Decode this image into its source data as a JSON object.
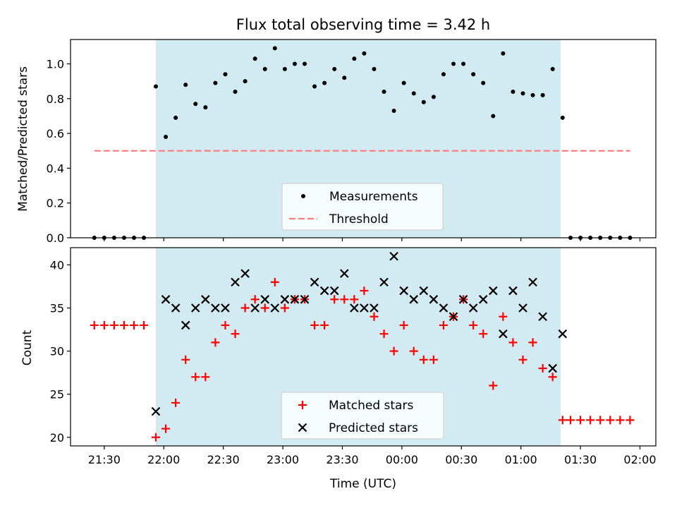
{
  "chart_data": [
    {
      "type": "scatter",
      "title": "Flux total observing time = 3.42 h",
      "xlabel": "",
      "ylabel": "Matched/Predicted stars",
      "ylim": [
        0,
        1.14
      ],
      "yticks": [
        "0.0",
        "0.2",
        "0.4",
        "0.6",
        "0.8",
        "1.0"
      ],
      "observing_window": {
        "start": "21:56",
        "end": "01:20",
        "color": "#add8e6"
      },
      "legend_position": "lower center",
      "series": [
        {
          "name": "Measurements",
          "marker": "dot",
          "color": "#000000",
          "x": [
            "21:25",
            "21:30",
            "21:35",
            "21:40",
            "21:45",
            "21:50",
            "21:56",
            "22:01",
            "22:06",
            "22:11",
            "22:16",
            "22:21",
            "22:26",
            "22:31",
            "22:36",
            "22:41",
            "22:46",
            "22:51",
            "22:56",
            "23:01",
            "23:06",
            "23:11",
            "23:16",
            "23:21",
            "23:26",
            "23:31",
            "23:36",
            "23:41",
            "23:46",
            "23:51",
            "23:56",
            "00:01",
            "00:06",
            "00:11",
            "00:16",
            "00:21",
            "00:26",
            "00:31",
            "00:36",
            "00:41",
            "00:46",
            "00:51",
            "00:56",
            "01:01",
            "01:06",
            "01:11",
            "01:16",
            "01:21",
            "01:25",
            "01:30",
            "01:35",
            "01:40",
            "01:45",
            "01:50",
            "01:55"
          ],
          "y": [
            0,
            0,
            0,
            0,
            0,
            0,
            0.87,
            0.58,
            0.69,
            0.88,
            0.77,
            0.75,
            0.89,
            0.94,
            0.84,
            0.9,
            1.03,
            0.97,
            1.09,
            0.97,
            1.0,
            1.0,
            0.87,
            0.89,
            0.97,
            0.92,
            1.03,
            1.06,
            0.97,
            0.84,
            0.73,
            0.89,
            0.83,
            0.78,
            0.81,
            0.94,
            1.0,
            1.0,
            0.94,
            0.89,
            0.7,
            1.06,
            0.84,
            0.83,
            0.82,
            0.82,
            0.97,
            0.69,
            0,
            0,
            0,
            0,
            0,
            0,
            0
          ]
        },
        {
          "name": "Threshold",
          "marker": "dashed-line",
          "color": "#ff7f7f",
          "x": [
            "21:25",
            "01:55"
          ],
          "y": [
            0.5,
            0.5
          ]
        }
      ]
    },
    {
      "type": "scatter",
      "title": "",
      "xlabel": "Time (UTC)",
      "ylabel": "Count",
      "ylim": [
        19,
        42
      ],
      "yticks": [
        "20",
        "25",
        "30",
        "35",
        "40"
      ],
      "xticks": [
        "21:30",
        "22:00",
        "22:30",
        "23:00",
        "23:30",
        "00:00",
        "00:30",
        "01:00",
        "01:30",
        "02:00"
      ],
      "observing_window": {
        "start": "21:56",
        "end": "01:20",
        "color": "#add8e6"
      },
      "legend_position": "lower center",
      "series": [
        {
          "name": "Matched stars",
          "marker": "plus",
          "color": "#ff0000",
          "x": [
            "21:25",
            "21:30",
            "21:35",
            "21:40",
            "21:45",
            "21:50",
            "21:56",
            "22:01",
            "22:06",
            "22:11",
            "22:16",
            "22:21",
            "22:26",
            "22:31",
            "22:36",
            "22:41",
            "22:46",
            "22:51",
            "22:56",
            "23:01",
            "23:06",
            "23:11",
            "23:16",
            "23:21",
            "23:26",
            "23:31",
            "23:36",
            "23:41",
            "23:46",
            "23:51",
            "23:56",
            "00:01",
            "00:06",
            "00:11",
            "00:16",
            "00:21",
            "00:26",
            "00:31",
            "00:36",
            "00:41",
            "00:46",
            "00:51",
            "00:56",
            "01:01",
            "01:06",
            "01:11",
            "01:16",
            "01:21",
            "01:25",
            "01:30",
            "01:35",
            "01:40",
            "01:45",
            "01:50",
            "01:55"
          ],
          "y": [
            33,
            33,
            33,
            33,
            33,
            33,
            20,
            21,
            24,
            29,
            27,
            27,
            31,
            33,
            32,
            35,
            36,
            35,
            38,
            35,
            36,
            36,
            33,
            33,
            36,
            36,
            36,
            37,
            34,
            32,
            30,
            33,
            30,
            29,
            29,
            33,
            34,
            36,
            33,
            32,
            26,
            34,
            31,
            29,
            31,
            28,
            27,
            22,
            22,
            22,
            22,
            22,
            22,
            22,
            22
          ]
        },
        {
          "name": "Predicted stars",
          "marker": "x",
          "color": "#000000",
          "x": [
            "21:56",
            "22:01",
            "22:06",
            "22:11",
            "22:16",
            "22:21",
            "22:26",
            "22:31",
            "22:36",
            "22:41",
            "22:46",
            "22:51",
            "22:56",
            "23:01",
            "23:06",
            "23:11",
            "23:16",
            "23:21",
            "23:26",
            "23:31",
            "23:36",
            "23:41",
            "23:46",
            "23:51",
            "23:56",
            "00:01",
            "00:06",
            "00:11",
            "00:16",
            "00:21",
            "00:26",
            "00:31",
            "00:36",
            "00:41",
            "00:46",
            "00:51",
            "00:56",
            "01:01",
            "01:06",
            "01:11",
            "01:16",
            "01:21"
          ],
          "y": [
            23,
            36,
            35,
            33,
            35,
            36,
            35,
            35,
            38,
            39,
            35,
            36,
            35,
            36,
            36,
            36,
            38,
            37,
            37,
            39,
            35,
            35,
            35,
            38,
            41,
            37,
            36,
            37,
            36,
            35,
            34,
            36,
            35,
            36,
            37,
            32,
            37,
            35,
            38,
            34,
            28,
            32
          ]
        }
      ]
    }
  ]
}
